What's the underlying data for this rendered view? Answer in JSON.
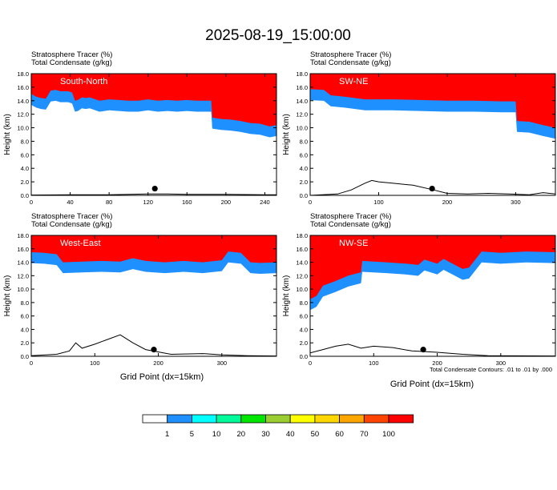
{
  "title": "2025-08-19_15:00:00",
  "panel_header": {
    "line1": "Stratosphere Tracer   (%)",
    "line2": "Total Condensate   (g/kg)"
  },
  "ylabel": "Height (km)",
  "xlabel": "Grid Point (dx=15km)",
  "footnote": "Total Condensate Contours: .01 to .01 by .000",
  "colorbar": {
    "levels": [
      "1",
      "5",
      "10",
      "20",
      "30",
      "40",
      "50",
      "60",
      "70",
      "100"
    ],
    "colors": [
      "#ffffff",
      "#1e90ff",
      "#00ffff",
      "#00fa9a",
      "#00e600",
      "#9acd32",
      "#ffff00",
      "#ffd700",
      "#ffa500",
      "#ff4500",
      "#ff0000"
    ]
  },
  "chart_data": [
    {
      "type": "heatmap",
      "name": "South-North",
      "title": "South-North",
      "xlim": [
        0,
        252
      ],
      "ylim": [
        0,
        18
      ],
      "xticks": [
        "0",
        "40",
        "80",
        "120",
        "160",
        "200",
        "240"
      ],
      "yticks": [
        "0.0",
        "2.0",
        "4.0",
        "6.0",
        "8.0",
        "10.0",
        "12.0",
        "14.0",
        "16.0",
        "18.0"
      ],
      "tropopause_km": [
        [
          0,
          15.0
        ],
        [
          5,
          14.6
        ],
        [
          10,
          14.4
        ],
        [
          15,
          14.3
        ],
        [
          20,
          15.5
        ],
        [
          25,
          15.6
        ],
        [
          30,
          15.4
        ],
        [
          38,
          15.4
        ],
        [
          42,
          15.2
        ],
        [
          45,
          14.0
        ],
        [
          48,
          14.1
        ],
        [
          52,
          14.5
        ],
        [
          56,
          14.4
        ],
        [
          60,
          14.5
        ],
        [
          70,
          14.0
        ],
        [
          80,
          14.2
        ],
        [
          90,
          14.1
        ],
        [
          100,
          14.0
        ],
        [
          110,
          14.0
        ],
        [
          120,
          14.2
        ],
        [
          130,
          14.0
        ],
        [
          140,
          14.1
        ],
        [
          150,
          14.0
        ],
        [
          160,
          14.1
        ],
        [
          170,
          14.0
        ],
        [
          180,
          14.0
        ],
        [
          185,
          14.0
        ],
        [
          186,
          11.5
        ],
        [
          195,
          11.3
        ],
        [
          205,
          11.2
        ],
        [
          215,
          11.0
        ],
        [
          225,
          10.7
        ],
        [
          235,
          10.6
        ],
        [
          245,
          10.2
        ],
        [
          252,
          10.4
        ]
      ],
      "terrain_km": [
        [
          0,
          0.05
        ],
        [
          40,
          0.1
        ],
        [
          80,
          0.1
        ],
        [
          120,
          0.2
        ],
        [
          140,
          0.2
        ],
        [
          160,
          0.15
        ],
        [
          200,
          0.15
        ],
        [
          240,
          0.1
        ],
        [
          252,
          0.1
        ]
      ],
      "marker": {
        "x": 127,
        "y": 1.0
      }
    },
    {
      "type": "heatmap",
      "name": "SW-NE",
      "title": "SW-NE",
      "xlim": [
        0,
        358
      ],
      "ylim": [
        0,
        18
      ],
      "xticks": [
        "0",
        "100",
        "200",
        "300"
      ],
      "yticks": [
        "0.0",
        "2.0",
        "4.0",
        "6.0",
        "8.0",
        "10.0",
        "12.0",
        "14.0",
        "16.0",
        "18.0"
      ],
      "tropopause_km": [
        [
          0,
          15.7
        ],
        [
          20,
          15.6
        ],
        [
          30,
          14.8
        ],
        [
          50,
          14.6
        ],
        [
          80,
          14.2
        ],
        [
          120,
          14.2
        ],
        [
          160,
          14.1
        ],
        [
          200,
          14.0
        ],
        [
          240,
          14.0
        ],
        [
          280,
          13.9
        ],
        [
          300,
          13.9
        ],
        [
          302,
          11.0
        ],
        [
          320,
          10.9
        ],
        [
          340,
          10.4
        ],
        [
          358,
          10.0
        ]
      ],
      "terrain_km": [
        [
          0,
          0.0
        ],
        [
          40,
          0.2
        ],
        [
          60,
          0.8
        ],
        [
          80,
          1.8
        ],
        [
          90,
          2.2
        ],
        [
          100,
          2.0
        ],
        [
          120,
          1.8
        ],
        [
          150,
          1.5
        ],
        [
          180,
          0.8
        ],
        [
          200,
          0.3
        ],
        [
          230,
          0.2
        ],
        [
          260,
          0.3
        ],
        [
          290,
          0.2
        ],
        [
          320,
          0.1
        ],
        [
          340,
          0.4
        ],
        [
          358,
          0.2
        ]
      ],
      "marker": {
        "x": 178,
        "y": 1.0
      }
    },
    {
      "type": "heatmap",
      "name": "West-East",
      "title": "West-East",
      "xlim": [
        0,
        386
      ],
      "ylim": [
        0,
        18
      ],
      "xticks": [
        "0",
        "100",
        "200",
        "300"
      ],
      "yticks": [
        "0.0",
        "2.0",
        "4.0",
        "6.0",
        "8.0",
        "10.0",
        "12.0",
        "14.0",
        "16.0",
        "18.0"
      ],
      "tropopause_km": [
        [
          0,
          15.5
        ],
        [
          20,
          15.4
        ],
        [
          40,
          15.2
        ],
        [
          50,
          14.0
        ],
        [
          80,
          14.1
        ],
        [
          110,
          14.2
        ],
        [
          140,
          14.1
        ],
        [
          160,
          14.6
        ],
        [
          180,
          14.2
        ],
        [
          210,
          14.0
        ],
        [
          240,
          14.2
        ],
        [
          270,
          14.0
        ],
        [
          300,
          14.3
        ],
        [
          310,
          15.6
        ],
        [
          330,
          15.4
        ],
        [
          345,
          14.0
        ],
        [
          360,
          13.9
        ],
        [
          386,
          14.0
        ]
      ],
      "terrain_km": [
        [
          0,
          0.1
        ],
        [
          40,
          0.3
        ],
        [
          60,
          0.8
        ],
        [
          70,
          2.0
        ],
        [
          80,
          1.2
        ],
        [
          100,
          1.8
        ],
        [
          120,
          2.5
        ],
        [
          140,
          3.2
        ],
        [
          160,
          2.0
        ],
        [
          180,
          1.0
        ],
        [
          220,
          0.3
        ],
        [
          270,
          0.4
        ],
        [
          300,
          0.2
        ],
        [
          340,
          0.1
        ],
        [
          386,
          0.05
        ]
      ],
      "marker": {
        "x": 193,
        "y": 1.0
      }
    },
    {
      "type": "heatmap",
      "name": "NW-SE",
      "title": "NW-SE",
      "xlim": [
        0,
        386
      ],
      "ylim": [
        0,
        18
      ],
      "xticks": [
        "0",
        "100",
        "200",
        "300"
      ],
      "yticks": [
        "0.0",
        "2.0",
        "4.0",
        "6.0",
        "8.0",
        "10.0",
        "12.0",
        "14.0",
        "16.0",
        "18.0"
      ],
      "tropopause_km": [
        [
          0,
          8.5
        ],
        [
          10,
          9.0
        ],
        [
          20,
          10.5
        ],
        [
          40,
          11.2
        ],
        [
          60,
          12.0
        ],
        [
          80,
          12.5
        ],
        [
          82,
          14.2
        ],
        [
          120,
          14.0
        ],
        [
          150,
          13.8
        ],
        [
          170,
          13.6
        ],
        [
          180,
          14.4
        ],
        [
          200,
          13.8
        ],
        [
          210,
          14.5
        ],
        [
          230,
          13.5
        ],
        [
          240,
          13.0
        ],
        [
          250,
          13.2
        ],
        [
          270,
          15.6
        ],
        [
          300,
          15.4
        ],
        [
          340,
          15.6
        ],
        [
          386,
          15.5
        ]
      ],
      "terrain_km": [
        [
          0,
          0.5
        ],
        [
          20,
          1.0
        ],
        [
          40,
          1.5
        ],
        [
          60,
          1.8
        ],
        [
          80,
          1.2
        ],
        [
          100,
          1.5
        ],
        [
          130,
          1.3
        ],
        [
          160,
          0.8
        ],
        [
          200,
          0.6
        ],
        [
          240,
          0.3
        ],
        [
          280,
          0.1
        ],
        [
          386,
          0.05
        ]
      ],
      "marker": {
        "x": 178,
        "y": 1.0
      }
    }
  ]
}
